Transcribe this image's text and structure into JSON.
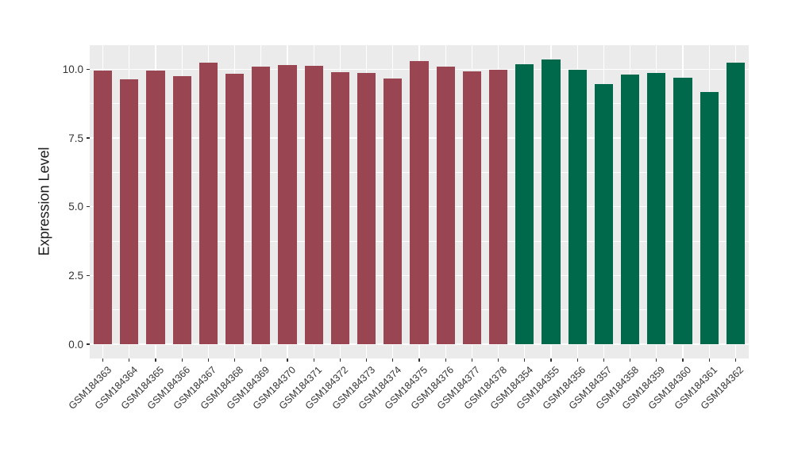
{
  "figure": {
    "background": "#FFFFFF",
    "panel_background": "#EBEBEB",
    "gridline_color": "#FFFFFF",
    "axis_text_color": "#333333",
    "axis_title_color": "#1A1A1A",
    "red_group_color": "#9A4552",
    "green_group_color": "#00684B"
  },
  "chart_data": {
    "type": "bar",
    "title": "",
    "xlabel": "",
    "ylabel": "Expression Level",
    "categories": [
      "GSM184363",
      "GSM184364",
      "GSM184365",
      "GSM184366",
      "GSM184367",
      "GSM184368",
      "GSM184369",
      "GSM184370",
      "GSM184371",
      "GSM184372",
      "GSM184373",
      "GSM184374",
      "GSM184375",
      "GSM184376",
      "GSM184377",
      "GSM184378",
      "GSM184354",
      "GSM184355",
      "GSM184356",
      "GSM184357",
      "GSM184358",
      "GSM184359",
      "GSM184360",
      "GSM184361",
      "GSM184362"
    ],
    "values": [
      9.97,
      9.64,
      9.97,
      9.76,
      10.24,
      9.85,
      10.09,
      10.17,
      10.14,
      9.9,
      9.87,
      9.68,
      10.3,
      10.09,
      9.92,
      10.0,
      10.19,
      10.36,
      9.98,
      9.47,
      9.82,
      9.86,
      9.71,
      9.18,
      10.26
    ],
    "bar_colors": [
      "#9A4552",
      "#9A4552",
      "#9A4552",
      "#9A4552",
      "#9A4552",
      "#9A4552",
      "#9A4552",
      "#9A4552",
      "#9A4552",
      "#9A4552",
      "#9A4552",
      "#9A4552",
      "#9A4552",
      "#9A4552",
      "#9A4552",
      "#9A4552",
      "#00684B",
      "#00684B",
      "#00684B",
      "#00684B",
      "#00684B",
      "#00684B",
      "#00684B",
      "#00684B",
      "#00684B"
    ],
    "ylim": [
      -0.52,
      10.88
    ],
    "yticks": {
      "values": [
        0,
        2.5,
        5,
        7.5,
        10
      ],
      "labels": [
        "0.0",
        "2.5",
        "5.0",
        "7.5",
        "10.0"
      ]
    },
    "yminor": [
      1.25,
      3.75,
      6.25,
      8.75
    ],
    "grid": true,
    "legend_position": "none",
    "bar_width_fraction": 0.7,
    "x_label_rotation": 45
  }
}
